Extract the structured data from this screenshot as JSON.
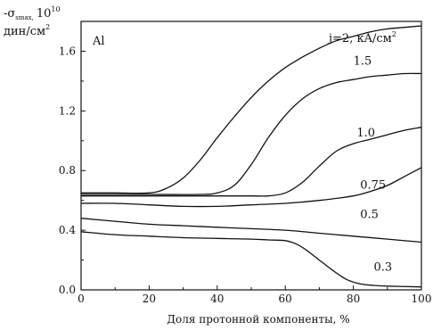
{
  "chart_data": {
    "type": "line",
    "xlabel": "Доля протонной компоненты, %",
    "ylabel_main": "-σ",
    "ylabel_sub": "smax,",
    "ylabel_exp": "10",
    "ylabel_exp_sup": "10",
    "ylabel_unit": "дин/см",
    "ylabel_unit_sup": "2",
    "material": "Al",
    "legend_title_prefix": "j=2, кA/см",
    "legend_title_sup": "2",
    "xlim": [
      0,
      100
    ],
    "ylim": [
      0,
      1.8
    ],
    "x_ticks": [
      "0",
      "20",
      "40",
      "60",
      "80",
      "100"
    ],
    "x_tick_values": [
      0,
      20,
      40,
      60,
      80,
      100
    ],
    "y_ticks": [
      "0.0",
      "0.4",
      "0.8",
      "1.2",
      "1.6"
    ],
    "y_tick_values": [
      0,
      0.4,
      0.8,
      1.2,
      1.6
    ],
    "series": [
      {
        "label": "",
        "points": [
          [
            0,
            0.65
          ],
          [
            10,
            0.65
          ],
          [
            20,
            0.65
          ],
          [
            25,
            0.68
          ],
          [
            30,
            0.75
          ],
          [
            35,
            0.87
          ],
          [
            40,
            1.02
          ],
          [
            45,
            1.16
          ],
          [
            50,
            1.29
          ],
          [
            55,
            1.4
          ],
          [
            60,
            1.49
          ],
          [
            65,
            1.56
          ],
          [
            70,
            1.62
          ],
          [
            75,
            1.67
          ],
          [
            80,
            1.7
          ],
          [
            85,
            1.73
          ],
          [
            90,
            1.75
          ],
          [
            95,
            1.76
          ],
          [
            100,
            1.77
          ]
        ]
      },
      {
        "label": "1.5",
        "label_at": [
          80,
          1.51
        ],
        "points": [
          [
            0,
            0.64
          ],
          [
            20,
            0.64
          ],
          [
            35,
            0.64
          ],
          [
            40,
            0.65
          ],
          [
            45,
            0.7
          ],
          [
            50,
            0.84
          ],
          [
            55,
            1.02
          ],
          [
            60,
            1.17
          ],
          [
            65,
            1.28
          ],
          [
            70,
            1.35
          ],
          [
            75,
            1.39
          ],
          [
            80,
            1.41
          ],
          [
            85,
            1.43
          ],
          [
            90,
            1.44
          ],
          [
            95,
            1.45
          ],
          [
            100,
            1.45
          ]
        ]
      },
      {
        "label": "1.0",
        "label_at": [
          81,
          1.03
        ],
        "points": [
          [
            0,
            0.63
          ],
          [
            20,
            0.63
          ],
          [
            40,
            0.63
          ],
          [
            50,
            0.63
          ],
          [
            55,
            0.63
          ],
          [
            60,
            0.65
          ],
          [
            65,
            0.72
          ],
          [
            70,
            0.83
          ],
          [
            75,
            0.93
          ],
          [
            80,
            0.98
          ],
          [
            85,
            1.01
          ],
          [
            90,
            1.04
          ],
          [
            95,
            1.07
          ],
          [
            100,
            1.09
          ]
        ]
      },
      {
        "label": "0.75",
        "label_at": [
          82,
          0.68
        ],
        "points": [
          [
            0,
            0.58
          ],
          [
            10,
            0.58
          ],
          [
            20,
            0.57
          ],
          [
            30,
            0.56
          ],
          [
            40,
            0.56
          ],
          [
            50,
            0.57
          ],
          [
            60,
            0.58
          ],
          [
            70,
            0.6
          ],
          [
            80,
            0.63
          ],
          [
            85,
            0.66
          ],
          [
            90,
            0.7
          ],
          [
            95,
            0.76
          ],
          [
            100,
            0.82
          ]
        ]
      },
      {
        "label": "0.5",
        "label_at": [
          82,
          0.48
        ],
        "points": [
          [
            0,
            0.48
          ],
          [
            10,
            0.46
          ],
          [
            20,
            0.44
          ],
          [
            30,
            0.43
          ],
          [
            40,
            0.42
          ],
          [
            50,
            0.41
          ],
          [
            60,
            0.4
          ],
          [
            70,
            0.38
          ],
          [
            80,
            0.36
          ],
          [
            90,
            0.34
          ],
          [
            100,
            0.32
          ]
        ]
      },
      {
        "label": "0.3",
        "label_at": [
          86,
          0.13
        ],
        "points": [
          [
            0,
            0.39
          ],
          [
            10,
            0.37
          ],
          [
            20,
            0.36
          ],
          [
            30,
            0.35
          ],
          [
            40,
            0.345
          ],
          [
            50,
            0.34
          ],
          [
            55,
            0.335
          ],
          [
            60,
            0.33
          ],
          [
            63,
            0.31
          ],
          [
            66,
            0.27
          ],
          [
            70,
            0.2
          ],
          [
            74,
            0.13
          ],
          [
            78,
            0.07
          ],
          [
            82,
            0.04
          ],
          [
            86,
            0.03
          ],
          [
            90,
            0.025
          ],
          [
            100,
            0.02
          ]
        ]
      }
    ]
  }
}
